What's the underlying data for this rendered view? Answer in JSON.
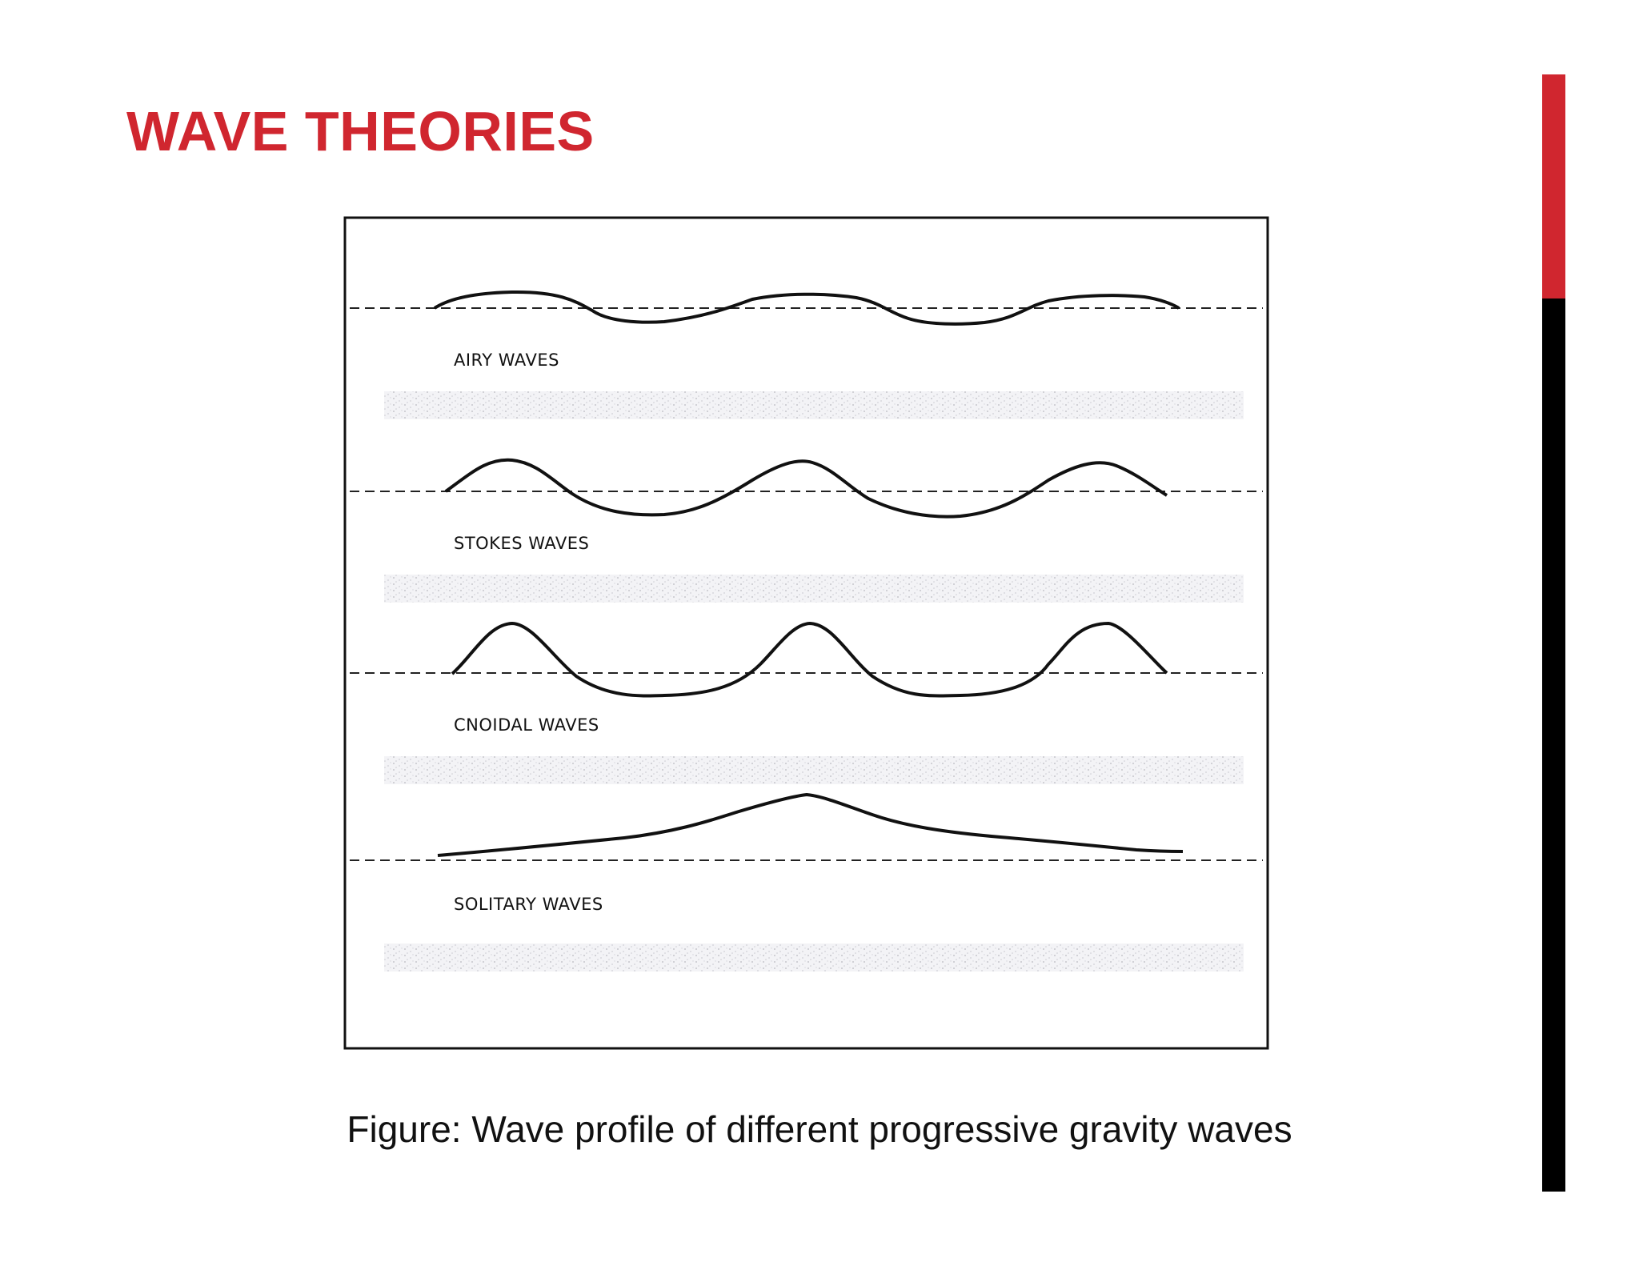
{
  "slide": {
    "title": "WAVE THEORIES",
    "accent_colors": {
      "title": "#d0262f",
      "bar_top": "#d0262f",
      "bar_bottom": "#000000"
    }
  },
  "figure": {
    "waves": [
      {
        "label": "AIRY WAVES"
      },
      {
        "label": "STOKES WAVES"
      },
      {
        "label": "CNOIDAL WAVES"
      },
      {
        "label": "SOLITARY WAVES"
      }
    ]
  },
  "caption": "Figure: Wave profile of different progressive gravity waves"
}
